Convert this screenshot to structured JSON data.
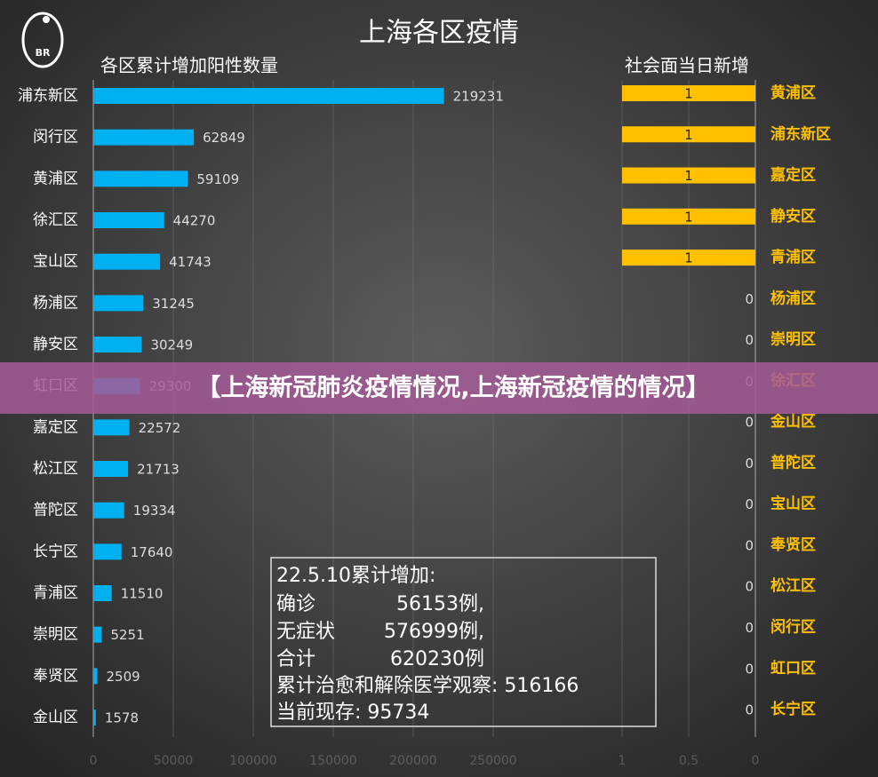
{
  "logo_text": "BR",
  "title": "上海各区疫情",
  "chart_data": [
    {
      "type": "hbar",
      "title": "各区累计增加阳性数量",
      "color": "#00b0f0",
      "categories": [
        "浦东新区",
        "闵行区",
        "黄浦区",
        "徐汇区",
        "宝山区",
        "杨浦区",
        "静安区",
        "虹口区",
        "嘉定区",
        "松江区",
        "普陀区",
        "长宁区",
        "青浦区",
        "崇明区",
        "奉贤区",
        "金山区"
      ],
      "values": [
        219231,
        62849,
        59109,
        44270,
        41743,
        31245,
        30249,
        29300,
        22572,
        21713,
        19334,
        17640,
        11510,
        5251,
        2509,
        1578
      ],
      "xlim": [
        0,
        250000
      ],
      "xticks": [
        0,
        50000,
        100000,
        150000,
        200000,
        250000
      ],
      "grid": true
    },
    {
      "type": "hbar",
      "title": "社会面当日新增",
      "color": "#ffc000",
      "reversed": true,
      "categories": [
        "黄浦区",
        "浦东新区",
        "嘉定区",
        "静安区",
        "青浦区",
        "杨浦区",
        "崇明区",
        "徐汇区",
        "金山区",
        "普陀区",
        "宝山区",
        "奉贤区",
        "松江区",
        "闵行区",
        "虹口区",
        "长宁区"
      ],
      "values": [
        1,
        1,
        1,
        1,
        1,
        0,
        0,
        0,
        0,
        0,
        0,
        0,
        0,
        0,
        0,
        0
      ],
      "xlim": [
        0,
        1
      ],
      "xticks": [
        0,
        0.5,
        1
      ],
      "grid": true
    }
  ],
  "box": {
    "title": "22.5.10累计增加:",
    "rows": [
      [
        "确诊",
        "56153例,"
      ],
      [
        "无症状",
        "576999例,"
      ],
      [
        "合计",
        "620230例"
      ]
    ],
    "lines": [
      "累计治愈和解除医学观察: 516166",
      "当前现存: 95734"
    ]
  },
  "banner": "【上海新冠肺炎疫情情况,上海新冠疫情的情况】"
}
